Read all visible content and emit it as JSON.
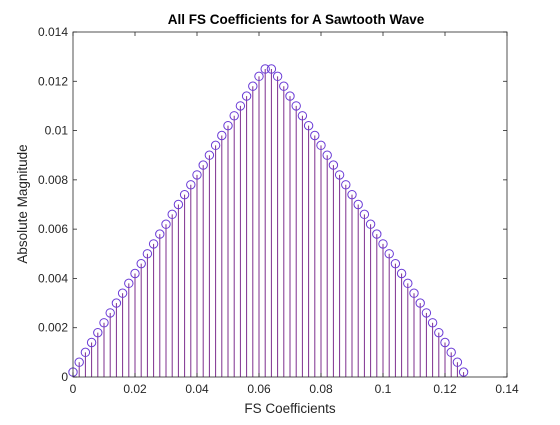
{
  "colors": {
    "stem": "#7e2f8e",
    "marker": "#6a3bd6",
    "axis": "#262626",
    "background": "#ffffff"
  },
  "chart_data": {
    "type": "stem",
    "title": "All FS Coefficients for A Sawtooth Wave",
    "xlabel": "FS Coefficients",
    "ylabel": "Absolute Magnitude",
    "xlim": [
      0,
      0.14
    ],
    "ylim": [
      0,
      0.014
    ],
    "xticks": [
      "0",
      "0.02",
      "0.04",
      "0.06",
      "0.08",
      "0.1",
      "0.12",
      "0.14"
    ],
    "yticks": [
      "0",
      "0.002",
      "0.004",
      "0.006",
      "0.008",
      "0.01",
      "0.012",
      "0.014"
    ],
    "grid": false,
    "box": true,
    "x": [
      0.0,
      0.002,
      0.004,
      0.006,
      0.008,
      0.01,
      0.012,
      0.014,
      0.016,
      0.018,
      0.02,
      0.022,
      0.024,
      0.026,
      0.028,
      0.03,
      0.032,
      0.034,
      0.036,
      0.038,
      0.04,
      0.042,
      0.044,
      0.046,
      0.048,
      0.05,
      0.052,
      0.054,
      0.056,
      0.058,
      0.06,
      0.062,
      0.064,
      0.066,
      0.068,
      0.07,
      0.072,
      0.074,
      0.076,
      0.078,
      0.08,
      0.082,
      0.084,
      0.086,
      0.088,
      0.09,
      0.092,
      0.094,
      0.096,
      0.098,
      0.1,
      0.102,
      0.104,
      0.106,
      0.108,
      0.11,
      0.112,
      0.114,
      0.116,
      0.118,
      0.12,
      0.122,
      0.124,
      0.126
    ],
    "y": [
      0.0002,
      0.0006,
      0.001,
      0.0014,
      0.0018,
      0.0022,
      0.0026,
      0.003,
      0.0034,
      0.0038,
      0.0042,
      0.0046,
      0.005,
      0.0054,
      0.0058,
      0.0062,
      0.0066,
      0.007,
      0.0074,
      0.0078,
      0.0082,
      0.0086,
      0.009,
      0.0094,
      0.0098,
      0.0102,
      0.0106,
      0.011,
      0.0114,
      0.0118,
      0.0122,
      0.0125,
      0.0125,
      0.0122,
      0.0118,
      0.0114,
      0.011,
      0.0106,
      0.0102,
      0.0098,
      0.0094,
      0.009,
      0.0086,
      0.0082,
      0.0078,
      0.0074,
      0.007,
      0.0066,
      0.0062,
      0.0058,
      0.0054,
      0.005,
      0.0046,
      0.0042,
      0.0038,
      0.0034,
      0.003,
      0.0026,
      0.0022,
      0.0018,
      0.0014,
      0.001,
      0.0006,
      0.0002
    ]
  }
}
